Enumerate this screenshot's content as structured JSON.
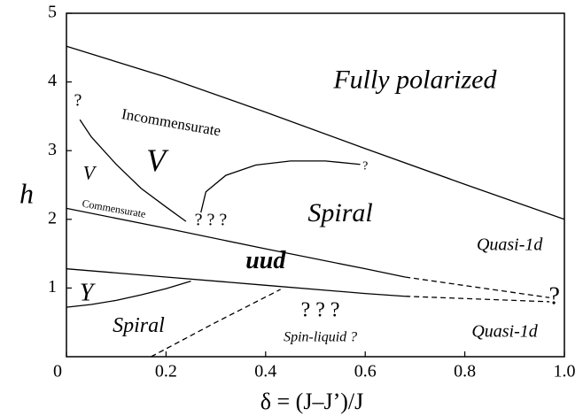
{
  "chart_data": {
    "type": "line",
    "xlabel": "δ = (J–J’)/J",
    "ylabel": "h",
    "xlim": [
      0,
      1
    ],
    "ylim": [
      0,
      5
    ],
    "xticks": [
      0,
      0.2,
      0.4,
      0.6,
      0.8,
      {
        "value": 1,
        "label": "1.0"
      }
    ],
    "yticks": [
      1,
      2,
      3,
      4,
      5
    ],
    "color": "#000000",
    "series": [
      {
        "x": [
          0,
          0.2,
          0.4,
          0.6,
          0.8,
          1.0
        ],
        "values": [
          4.52,
          4.07,
          3.56,
          3.03,
          2.51,
          2.0
        ],
        "dashed": false
      },
      {
        "x": [
          0,
          0.2,
          0.4,
          0.6,
          0.68
        ],
        "values": [
          2.16,
          1.87,
          1.57,
          1.28,
          1.16
        ],
        "dashed": false
      },
      {
        "x": [
          0.68,
          0.97
        ],
        "values": [
          1.16,
          0.86
        ],
        "dashed": true
      },
      {
        "x": [
          0,
          0.2,
          0.4,
          0.6,
          0.68
        ],
        "values": [
          1.28,
          1.16,
          1.04,
          0.92,
          0.88
        ],
        "dashed": false
      },
      {
        "x": [
          0.68,
          0.97
        ],
        "values": [
          0.88,
          0.8
        ],
        "dashed": true
      },
      {
        "x": [
          0,
          0.05,
          0.1,
          0.15,
          0.2,
          0.25
        ],
        "values": [
          0.72,
          0.76,
          0.82,
          0.9,
          0.99,
          1.1
        ],
        "dashed": false
      },
      {
        "x": [
          0.17,
          0.3,
          0.43
        ],
        "values": [
          0,
          0.5,
          0.98
        ],
        "dashed": true
      },
      {
        "x": [
          0.027,
          0.05,
          0.1,
          0.15,
          0.2,
          0.24
        ],
        "values": [
          3.45,
          3.2,
          2.8,
          2.45,
          2.18,
          1.97
        ],
        "dashed": false
      },
      {
        "x": [
          0.27,
          0.28,
          0.32,
          0.38,
          0.45,
          0.52,
          0.59
        ],
        "values": [
          2.1,
          2.4,
          2.64,
          2.79,
          2.85,
          2.85,
          2.8
        ],
        "dashed": false
      }
    ],
    "annotations": [
      {
        "text": "Fully polarized",
        "x": 0.7,
        "y": 4.0
      },
      {
        "text": "Incommensurate",
        "x": 0.21,
        "y": 3.39
      },
      {
        "text": "V",
        "x": 0.18,
        "y": 2.81
      },
      {
        "text": "V",
        "x": 0.045,
        "y": 2.65
      },
      {
        "text": "Commensurate",
        "x": 0.095,
        "y": 2.14
      },
      {
        "text": "? ? ?",
        "x": 0.29,
        "y": 1.97
      },
      {
        "text": "Spiral",
        "x": 0.55,
        "y": 2.06
      },
      {
        "text": "?",
        "x": 0.023,
        "y": 3.71
      },
      {
        "text": "?",
        "x": 0.6,
        "y": 2.77
      },
      {
        "text": "Quasi-1d",
        "x": 0.89,
        "y": 1.61
      },
      {
        "text": "uud",
        "x": 0.4,
        "y": 1.37
      },
      {
        "text": "Y",
        "x": 0.04,
        "y": 0.9
      },
      {
        "text": "?",
        "x": 0.98,
        "y": 0.85
      },
      {
        "text": "Spiral",
        "x": 0.145,
        "y": 0.43
      },
      {
        "text": "? ? ?",
        "x": 0.51,
        "y": 0.66
      },
      {
        "text": "Spin-liquid ?",
        "x": 0.51,
        "y": 0.27
      },
      {
        "text": "Quasi-1d",
        "x": 0.88,
        "y": 0.35
      }
    ]
  }
}
